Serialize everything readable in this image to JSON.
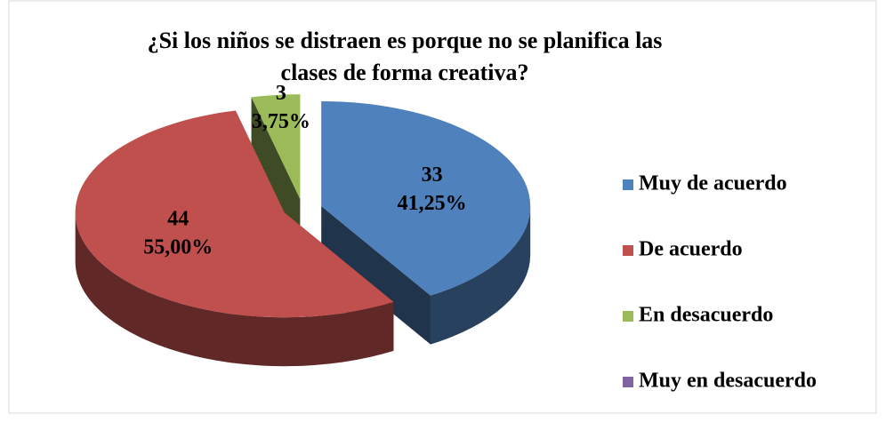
{
  "chart_data": {
    "type": "pie",
    "pie_3d": true,
    "exploded": true,
    "title_lines": [
      "¿Si los niños se distraen es porque no se planifica las",
      "clases de forma creativa?"
    ],
    "categories": [
      "Muy de acuerdo",
      "De acuerdo",
      "En desacuerdo",
      "Muy en desacuerdo"
    ],
    "values": [
      33,
      44,
      3,
      0
    ],
    "percentages": [
      41.25,
      55.0,
      3.75,
      0
    ],
    "percentage_labels": [
      "41,25%",
      "55,00%",
      "3,75%",
      null
    ],
    "colors": [
      "#4f81bd",
      "#c0504d",
      "#9bbb59",
      "#8064a2"
    ],
    "legend": "right"
  }
}
